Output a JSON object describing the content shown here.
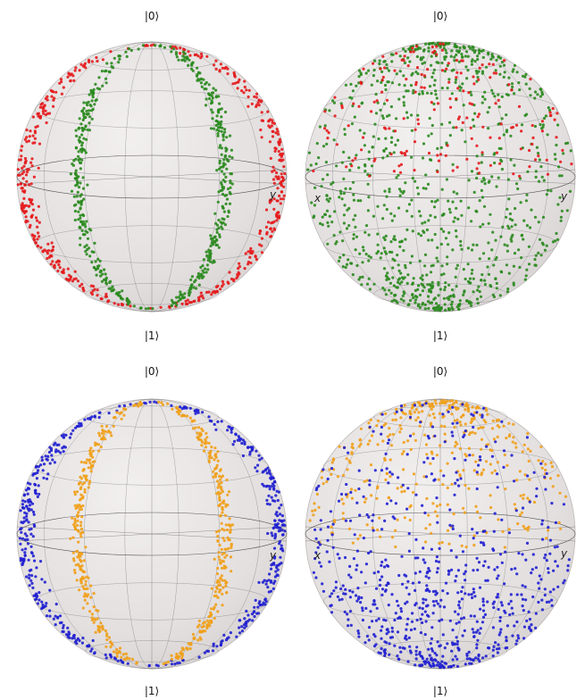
{
  "colors": {
    "red": "#e41a1c",
    "green": "#2a8a1e",
    "blue": "#1f1fd0",
    "orange": "#f0a01a",
    "sphere": "#e6e2e2",
    "wire": "#555555"
  },
  "panels": [
    {
      "top_label": "|0⟩",
      "bottom_label": "|1⟩",
      "x_axis_label": "",
      "y_axis_label": "y",
      "view": "side",
      "colors": [
        "red",
        "green"
      ]
    },
    {
      "top_label": "|0⟩",
      "bottom_label": "|1⟩",
      "x_axis_label": "x",
      "y_axis_label": "y",
      "view": "front",
      "colors": [
        "red",
        "green"
      ]
    },
    {
      "top_label": "|0⟩",
      "bottom_label": "|1⟩",
      "x_axis_label": "",
      "y_axis_label": "y",
      "view": "side",
      "colors": [
        "blue",
        "orange"
      ]
    },
    {
      "top_label": "|0⟩",
      "bottom_label": "|1⟩",
      "x_axis_label": "x",
      "y_axis_label": "y",
      "view": "front",
      "colors": [
        "blue",
        "orange"
      ]
    }
  ]
}
